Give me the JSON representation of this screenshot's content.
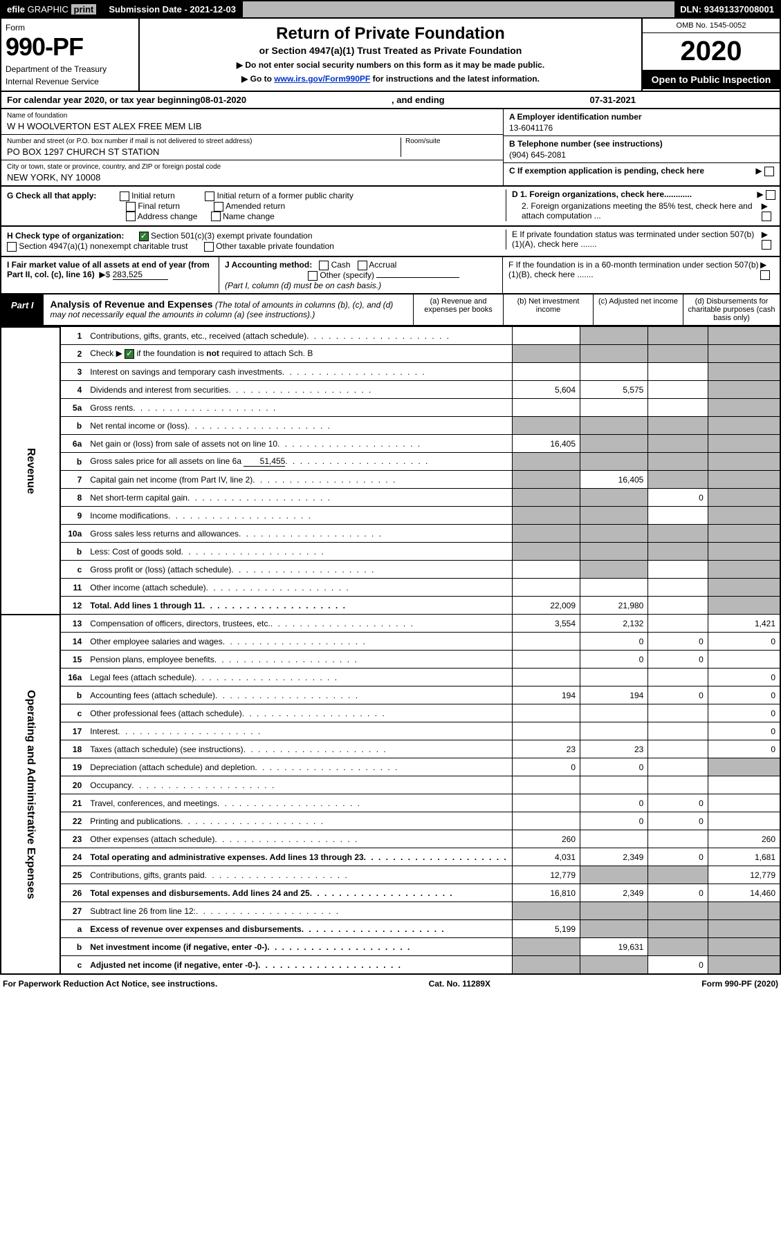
{
  "colors": {
    "black": "#000000",
    "white": "#ffffff",
    "grey": "#b8b8b8",
    "link": "#0033cc",
    "check_green": "#2e7d32"
  },
  "efile": {
    "efile": "efile",
    "graphic": "GRAPHIC",
    "print": "print",
    "sub_label": "Submission Date - ",
    "sub_date": "2021-12-03",
    "dln_label": "DLN: ",
    "dln": "93491337008001"
  },
  "hdr": {
    "form": "Form",
    "form_no": "990-PF",
    "dept1": "Department of the Treasury",
    "dept2": "Internal Revenue Service",
    "title": "Return of Private Foundation",
    "subtitle": "or Section 4947(a)(1) Trust Treated as Private Foundation",
    "note1": "▶ Do not enter social security numbers on this form as it may be made public.",
    "note2a": "▶ Go to ",
    "note2_link": "www.irs.gov/Form990PF",
    "note2b": " for instructions and the latest information.",
    "omb": "OMB No. 1545-0052",
    "year": "2020",
    "open": "Open to Public Inspection"
  },
  "cal": {
    "text1": "For calendar year 2020, or tax year beginning ",
    "begin": "08-01-2020",
    "text2": " , and ending ",
    "end": "07-31-2021"
  },
  "ident": {
    "name_lab": "Name of foundation",
    "name_val": "W H WOOLVERTON EST ALEX FREE MEM LIB",
    "addr_lab": "Number and street (or P.O. box number if mail is not delivered to street address)",
    "addr_val": "PO BOX 1297 CHURCH ST STATION",
    "room_lab": "Room/suite",
    "city_lab": "City or town, state or province, country, and ZIP or foreign postal code",
    "city_val": "NEW YORK, NY  10008",
    "A_lab": "A Employer identification number",
    "A_val": "13-6041176",
    "B_lab": "B Telephone number (see instructions)",
    "B_val": "(904) 645-2081",
    "C_lab": "C If exemption application is pending, check here",
    "D1_lab": "D 1. Foreign organizations, check here............",
    "D2_lab": "2. Foreign organizations meeting the 85% test, check here and attach computation ...",
    "E_lab": "E  If private foundation status was terminated under section 507(b)(1)(A), check here .......",
    "F_lab": "F  If the foundation is in a 60-month termination under section 507(b)(1)(B), check here .......",
    "arrow": "▶"
  },
  "G": {
    "lab": "G Check all that apply:",
    "o1": "Initial return",
    "o2": "Final return",
    "o3": "Address change",
    "o4": "Initial return of a former public charity",
    "o5": "Amended return",
    "o6": "Name change"
  },
  "H": {
    "lab": "H Check type of organization:",
    "o1": "Section 501(c)(3) exempt private foundation",
    "o2": "Section 4947(a)(1) nonexempt charitable trust",
    "o3": "Other taxable private foundation"
  },
  "I": {
    "lab": "I Fair market value of all assets at end of year (from Part II, col. (c), line 16)",
    "arrow": "▶$",
    "val": "283,525"
  },
  "J": {
    "lab": "J Accounting method:",
    "o1": "Cash",
    "o2": "Accrual",
    "o3": "Other (specify)",
    "note": "(Part I, column (d) must be on cash basis.)"
  },
  "part1": {
    "tag": "Part I",
    "title": "Analysis of Revenue and Expenses",
    "note": " (The total of amounts in columns (b), (c), and (d) may not necessarily equal the amounts in column (a) (see instructions).)",
    "colA": "(a)   Revenue and expenses per books",
    "colB": "(b)   Net investment income",
    "colC": "(c)   Adjusted net income",
    "colD": "(d)   Disbursements for charitable purposes (cash basis only)"
  },
  "side": {
    "revenue": "Revenue",
    "opex": "Operating and Administrative Expenses"
  },
  "rows": [
    {
      "n": "1",
      "t": "Contributions, gifts, grants, etc., received (attach schedule)",
      "a": "",
      "b": "g",
      "c": "g",
      "d": "g"
    },
    {
      "n": "2",
      "t": "Check ▶ ☑ if the foundation is not required to attach Sch. B",
      "a": "g",
      "b": "g",
      "c": "g",
      "d": "g",
      "ck": true
    },
    {
      "n": "3",
      "t": "Interest on savings and temporary cash investments",
      "a": "",
      "b": "",
      "c": "",
      "d": "g"
    },
    {
      "n": "4",
      "t": "Dividends and interest from securities",
      "a": "5,604",
      "b": "5,575",
      "c": "",
      "d": "g"
    },
    {
      "n": "5a",
      "t": "Gross rents",
      "a": "",
      "b": "",
      "c": "",
      "d": "g"
    },
    {
      "n": "b",
      "t": "Net rental income or (loss)",
      "a": "g",
      "b": "g",
      "c": "g",
      "d": "g",
      "inset": true
    },
    {
      "n": "6a",
      "t": "Net gain or (loss) from sale of assets not on line 10",
      "a": "16,405",
      "b": "g",
      "c": "g",
      "d": "g"
    },
    {
      "n": "b",
      "t": "Gross sales price for all assets on line 6a",
      "extra": "51,455",
      "a": "g",
      "b": "g",
      "c": "g",
      "d": "g",
      "inset": true
    },
    {
      "n": "7",
      "t": "Capital gain net income (from Part IV, line 2)",
      "a": "g",
      "b": "16,405",
      "c": "g",
      "d": "g"
    },
    {
      "n": "8",
      "t": "Net short-term capital gain",
      "a": "g",
      "b": "g",
      "c": "0",
      "d": "g"
    },
    {
      "n": "9",
      "t": "Income modifications",
      "a": "g",
      "b": "g",
      "c": "",
      "d": "g"
    },
    {
      "n": "10a",
      "t": "Gross sales less returns and allowances",
      "a": "g",
      "b": "g",
      "c": "g",
      "d": "g",
      "inset": true
    },
    {
      "n": "b",
      "t": "Less: Cost of goods sold",
      "a": "g",
      "b": "g",
      "c": "g",
      "d": "g",
      "inset": true
    },
    {
      "n": "c",
      "t": "Gross profit or (loss) (attach schedule)",
      "a": "",
      "b": "g",
      "c": "",
      "d": "g"
    },
    {
      "n": "11",
      "t": "Other income (attach schedule)",
      "a": "",
      "b": "",
      "c": "",
      "d": "g"
    },
    {
      "n": "12",
      "t": "Total. Add lines 1 through 11",
      "a": "22,009",
      "b": "21,980",
      "c": "",
      "d": "g",
      "bold": true
    },
    {
      "n": "13",
      "t": "Compensation of officers, directors, trustees, etc.",
      "a": "3,554",
      "b": "2,132",
      "c": "",
      "d": "1,421"
    },
    {
      "n": "14",
      "t": "Other employee salaries and wages",
      "a": "",
      "b": "0",
      "c": "0",
      "d": "0"
    },
    {
      "n": "15",
      "t": "Pension plans, employee benefits",
      "a": "",
      "b": "0",
      "c": "0",
      "d": ""
    },
    {
      "n": "16a",
      "t": "Legal fees (attach schedule)",
      "a": "",
      "b": "",
      "c": "",
      "d": "0"
    },
    {
      "n": "b",
      "t": "Accounting fees (attach schedule)",
      "a": "194",
      "b": "194",
      "c": "0",
      "d": "0"
    },
    {
      "n": "c",
      "t": "Other professional fees (attach schedule)",
      "a": "",
      "b": "",
      "c": "",
      "d": "0"
    },
    {
      "n": "17",
      "t": "Interest",
      "a": "",
      "b": "",
      "c": "",
      "d": "0"
    },
    {
      "n": "18",
      "t": "Taxes (attach schedule) (see instructions)",
      "a": "23",
      "b": "23",
      "c": "",
      "d": "0"
    },
    {
      "n": "19",
      "t": "Depreciation (attach schedule) and depletion",
      "a": "0",
      "b": "0",
      "c": "",
      "d": "g"
    },
    {
      "n": "20",
      "t": "Occupancy",
      "a": "",
      "b": "",
      "c": "",
      "d": ""
    },
    {
      "n": "21",
      "t": "Travel, conferences, and meetings",
      "a": "",
      "b": "0",
      "c": "0",
      "d": ""
    },
    {
      "n": "22",
      "t": "Printing and publications",
      "a": "",
      "b": "0",
      "c": "0",
      "d": ""
    },
    {
      "n": "23",
      "t": "Other expenses (attach schedule)",
      "a": "260",
      "b": "",
      "c": "",
      "d": "260"
    },
    {
      "n": "24",
      "t": "Total operating and administrative expenses. Add lines 13 through 23",
      "a": "4,031",
      "b": "2,349",
      "c": "0",
      "d": "1,681",
      "bold": true
    },
    {
      "n": "25",
      "t": "Contributions, gifts, grants paid",
      "a": "12,779",
      "b": "g",
      "c": "g",
      "d": "12,779"
    },
    {
      "n": "26",
      "t": "Total expenses and disbursements. Add lines 24 and 25",
      "a": "16,810",
      "b": "2,349",
      "c": "0",
      "d": "14,460",
      "bold": true
    },
    {
      "n": "27",
      "t": "Subtract line 26 from line 12:",
      "a": "g",
      "b": "g",
      "c": "g",
      "d": "g"
    },
    {
      "n": "a",
      "t": "Excess of revenue over expenses and disbursements",
      "a": "5,199",
      "b": "g",
      "c": "g",
      "d": "g",
      "bold": true
    },
    {
      "n": "b",
      "t": "Net investment income (if negative, enter -0-)",
      "a": "g",
      "b": "19,631",
      "c": "g",
      "d": "g",
      "bold": true
    },
    {
      "n": "c",
      "t": "Adjusted net income (if negative, enter -0-)",
      "a": "g",
      "b": "g",
      "c": "0",
      "d": "g",
      "bold": true
    }
  ],
  "footer": {
    "left": "For Paperwork Reduction Act Notice, see instructions.",
    "mid": "Cat. No. 11289X",
    "right": "Form 990-PF (2020)"
  }
}
